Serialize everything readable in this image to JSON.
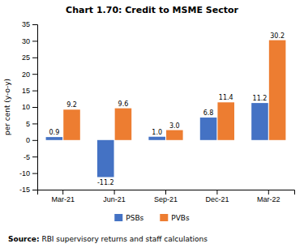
{
  "chart_data": {
    "type": "bar",
    "title": "Chart 1.70: Credit to MSME Sector",
    "categories": [
      "Mar-21",
      "Jun-21",
      "Sep-21",
      "Dec-21",
      "Mar-22"
    ],
    "series": [
      {
        "name": "PSBs",
        "color": "#4472C4",
        "values": [
          0.9,
          -11.2,
          1.0,
          6.8,
          11.2
        ],
        "value_labels": [
          "0.9",
          "-11.2",
          "1.0",
          "6.8",
          "11.2"
        ]
      },
      {
        "name": "PVBs",
        "color": "#ED7D31",
        "values": [
          9.2,
          9.6,
          3.0,
          11.4,
          30.2
        ],
        "value_labels": [
          "9.2",
          "9.6",
          "3.0",
          "11.4",
          "30.2"
        ]
      }
    ],
    "ylabel": "per cent (y-o-y)",
    "ylim": [
      -15,
      35
    ],
    "yticks": [
      -15,
      -10,
      -5,
      0,
      5,
      10,
      15,
      20,
      25,
      30,
      35
    ],
    "annotations": [
      "Source:",
      " RBI supervisory returns and staff calculations"
    ],
    "data_labels": true,
    "grid": false,
    "legend": "bottom"
  }
}
